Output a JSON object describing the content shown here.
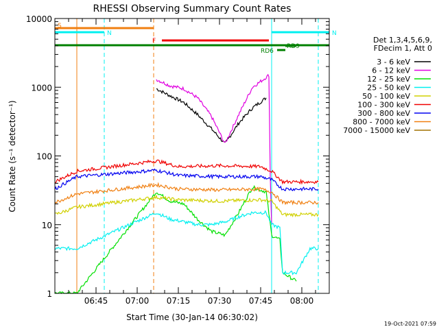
{
  "chart_data": {
    "type": "line",
    "title": "RHESSI Observing Summary Count Rates",
    "xlabel": "Start Time (30-Jan-14 06:30:02)",
    "ylabel": "Count Rate (s⁻¹ detector⁻¹)",
    "y_scale": "log",
    "ylim": [
      1,
      10000
    ],
    "xlim": [
      "06:30:02",
      "08:10:00"
    ],
    "x_ticks": [
      "06:45",
      "07:00",
      "07:15",
      "07:30",
      "07:45",
      "08:00"
    ],
    "y_ticks": [
      "1",
      "10",
      "100",
      "1000",
      "10000"
    ],
    "legend_position": "right",
    "legend_header": [
      "Det 1,3,4,5,6,9,",
      "FDecim 1, Att 0"
    ],
    "timestamp": "19-Oct-2021 07:59",
    "flags": [
      {
        "label": "S",
        "color": "#f07f10",
        "start": "06:30",
        "end": "07:06"
      },
      {
        "label": "N",
        "color": "#00f0f0",
        "start": "06:30",
        "end": "06:48"
      },
      {
        "label": "N",
        "color": "#00f0f0",
        "start": "07:49",
        "end": "08:10"
      },
      {
        "label": "F",
        "color": "#f00000",
        "start": "07:09",
        "end": "07:48"
      },
      {
        "label": "",
        "color": "#008000",
        "start": "06:30",
        "end": "08:10"
      },
      {
        "label": "RD6",
        "color": "#008000",
        "start": "07:51",
        "end": "07:54"
      },
      {
        "label": "RD9",
        "color": "#008000",
        "start": "07:54",
        "end": "07:58"
      }
    ],
    "vlines": [
      {
        "time": "06:30",
        "color": "#00f0f0",
        "style": "solid"
      },
      {
        "time": "06:38",
        "color": "#f07f10",
        "style": "solid"
      },
      {
        "time": "06:48",
        "color": "#00f0f0",
        "style": "dashed"
      },
      {
        "time": "07:06",
        "color": "#f07f10",
        "style": "dashed"
      },
      {
        "time": "07:49",
        "color": "#00f0f0",
        "style": "solid"
      },
      {
        "time": "08:06",
        "color": "#00f0f0",
        "style": "dashed"
      }
    ],
    "series": [
      {
        "name": "3 - 6 keV",
        "color": "#000000",
        "x": [
          "07:07",
          "07:12",
          "07:17",
          "07:22",
          "07:27",
          "07:32",
          "07:37",
          "07:42",
          "07:47"
        ],
        "y": [
          950,
          750,
          600,
          400,
          250,
          150,
          300,
          500,
          700
        ]
      },
      {
        "name": "6 - 12 keV",
        "color": "#e000e0",
        "x": [
          "07:07",
          "07:12",
          "07:17",
          "07:22",
          "07:27",
          "07:32",
          "07:37",
          "07:42",
          "07:46",
          "07:48",
          "07:48.5",
          "07:49"
        ],
        "y": [
          1300,
          1050,
          950,
          700,
          380,
          150,
          400,
          1000,
          1300,
          1500,
          50,
          10
        ]
      },
      {
        "name": "12 - 25 keV",
        "color": "#00e000",
        "x": [
          "06:30",
          "06:38",
          "07:07",
          "07:12",
          "07:17",
          "07:22",
          "07:27",
          "07:32",
          "07:37",
          "07:42",
          "07:47",
          "07:49",
          "07:52",
          "07:53",
          "07:58"
        ],
        "y": [
          1,
          1,
          30,
          22,
          20,
          12,
          8,
          7,
          15,
          35,
          30,
          7,
          6,
          2,
          1.5
        ]
      },
      {
        "name": "25 - 50 keV",
        "color": "#00f0f0",
        "x": [
          "06:30",
          "06:38",
          "07:07",
          "07:12",
          "07:17",
          "07:22",
          "07:27",
          "07:32",
          "07:37",
          "07:42",
          "07:47",
          "07:49",
          "07:52",
          "07:53",
          "07:58",
          "08:03",
          "08:06"
        ],
        "y": [
          4.5,
          4.5,
          15,
          12,
          11,
          10,
          10,
          11,
          13,
          15,
          15,
          10,
          9,
          2,
          2,
          4.5,
          4.5
        ]
      },
      {
        "name": "50 - 100 keV",
        "color": "#d0d000",
        "x": [
          "06:30",
          "06:38",
          "07:07",
          "07:15",
          "07:30",
          "07:45",
          "07:49",
          "07:53",
          "08:06"
        ],
        "y": [
          14,
          18,
          25,
          23,
          22,
          23,
          22,
          14,
          14
        ]
      },
      {
        "name": "100 - 300 keV",
        "color": "#f00000",
        "x": [
          "06:30",
          "06:38",
          "07:07",
          "07:15",
          "07:30",
          "07:45",
          "07:49",
          "07:53",
          "08:06"
        ],
        "y": [
          42,
          60,
          85,
          70,
          72,
          70,
          60,
          42,
          42
        ]
      },
      {
        "name": "300 - 800 keV",
        "color": "#0000f0",
        "x": [
          "06:30",
          "06:38",
          "07:07",
          "07:15",
          "07:30",
          "07:45",
          "07:49",
          "07:53",
          "08:06"
        ],
        "y": [
          33,
          50,
          62,
          52,
          50,
          50,
          45,
          33,
          33
        ]
      },
      {
        "name": "800 - 7000 keV",
        "color": "#f07f10",
        "x": [
          "06:30",
          "06:38",
          "07:07",
          "07:15",
          "07:30",
          "07:45",
          "07:49",
          "07:53",
          "08:06"
        ],
        "y": [
          21,
          28,
          38,
          33,
          32,
          33,
          30,
          21,
          21
        ]
      },
      {
        "name": "7000 - 15000 keV",
        "color": "#a07000",
        "x": [],
        "y": []
      }
    ]
  }
}
